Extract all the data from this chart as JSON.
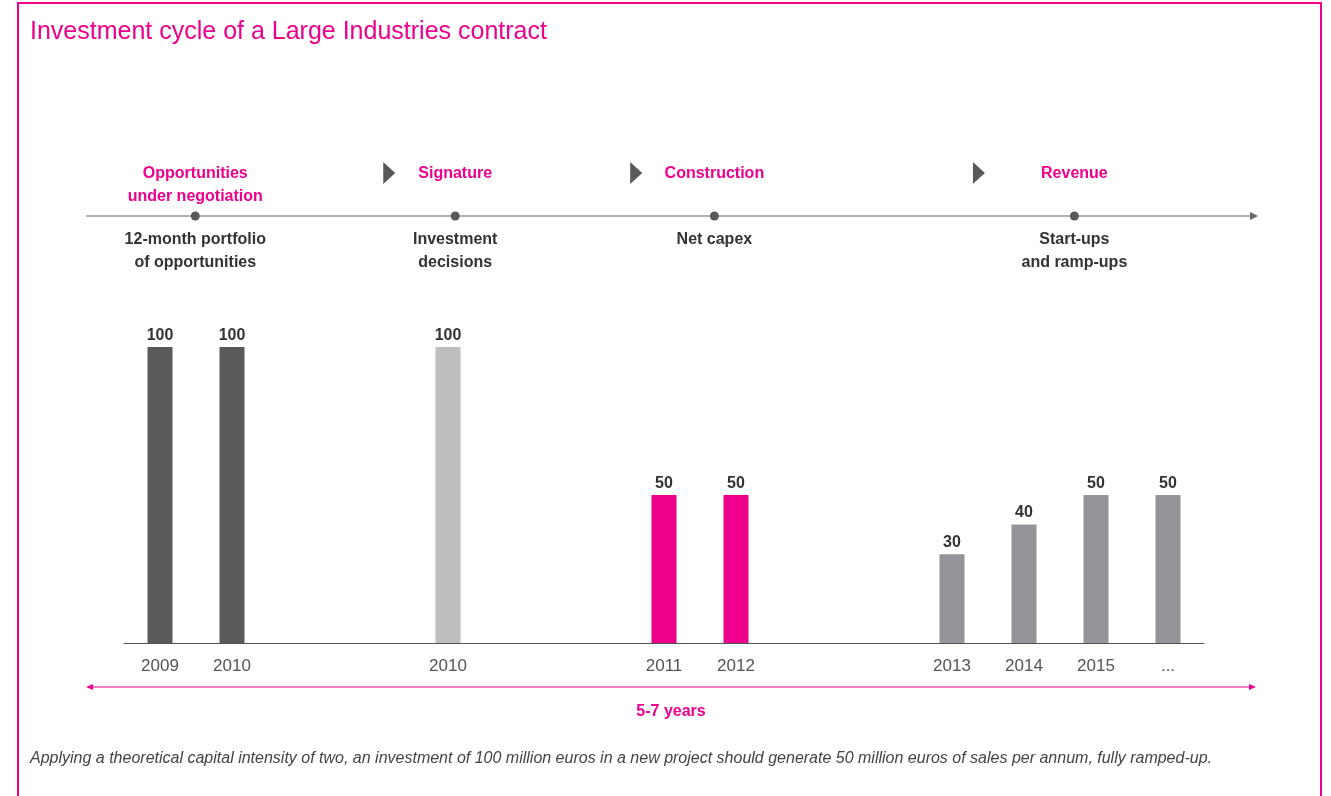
{
  "chart_data": {
    "type": "bar",
    "title": "Investment cycle of a Large Industries contract",
    "categories": [
      "2009",
      "2010",
      null,
      null,
      "2010",
      null,
      null,
      "2011",
      "2012",
      null,
      null,
      "2013",
      "2014",
      "2015",
      "..."
    ],
    "values": [
      100,
      100,
      null,
      null,
      100,
      null,
      null,
      50,
      50,
      null,
      null,
      30,
      40,
      50,
      50
    ],
    "colors": [
      "#58595b",
      "#58595b",
      null,
      null,
      "#bcbec0",
      null,
      null,
      "#ec008c",
      "#ec008c",
      null,
      null,
      "#939598",
      "#939598",
      "#939598",
      "#939598"
    ],
    "data_labels": true,
    "annotations": [
      "Opportunities\nunder negotiation",
      "Signature",
      "Construction",
      "Revenue",
      "12-month portfolio\nof opportunities",
      "Investment\ndecisions",
      "Net capex",
      "Start-ups\nand ramp-ups",
      "5-7 years",
      "Applying a theoretical capital intensity of two, an investment of 100 million euros in a new project should generate 50 million euros of sales per annum, fully ramped-up."
    ]
  }
}
